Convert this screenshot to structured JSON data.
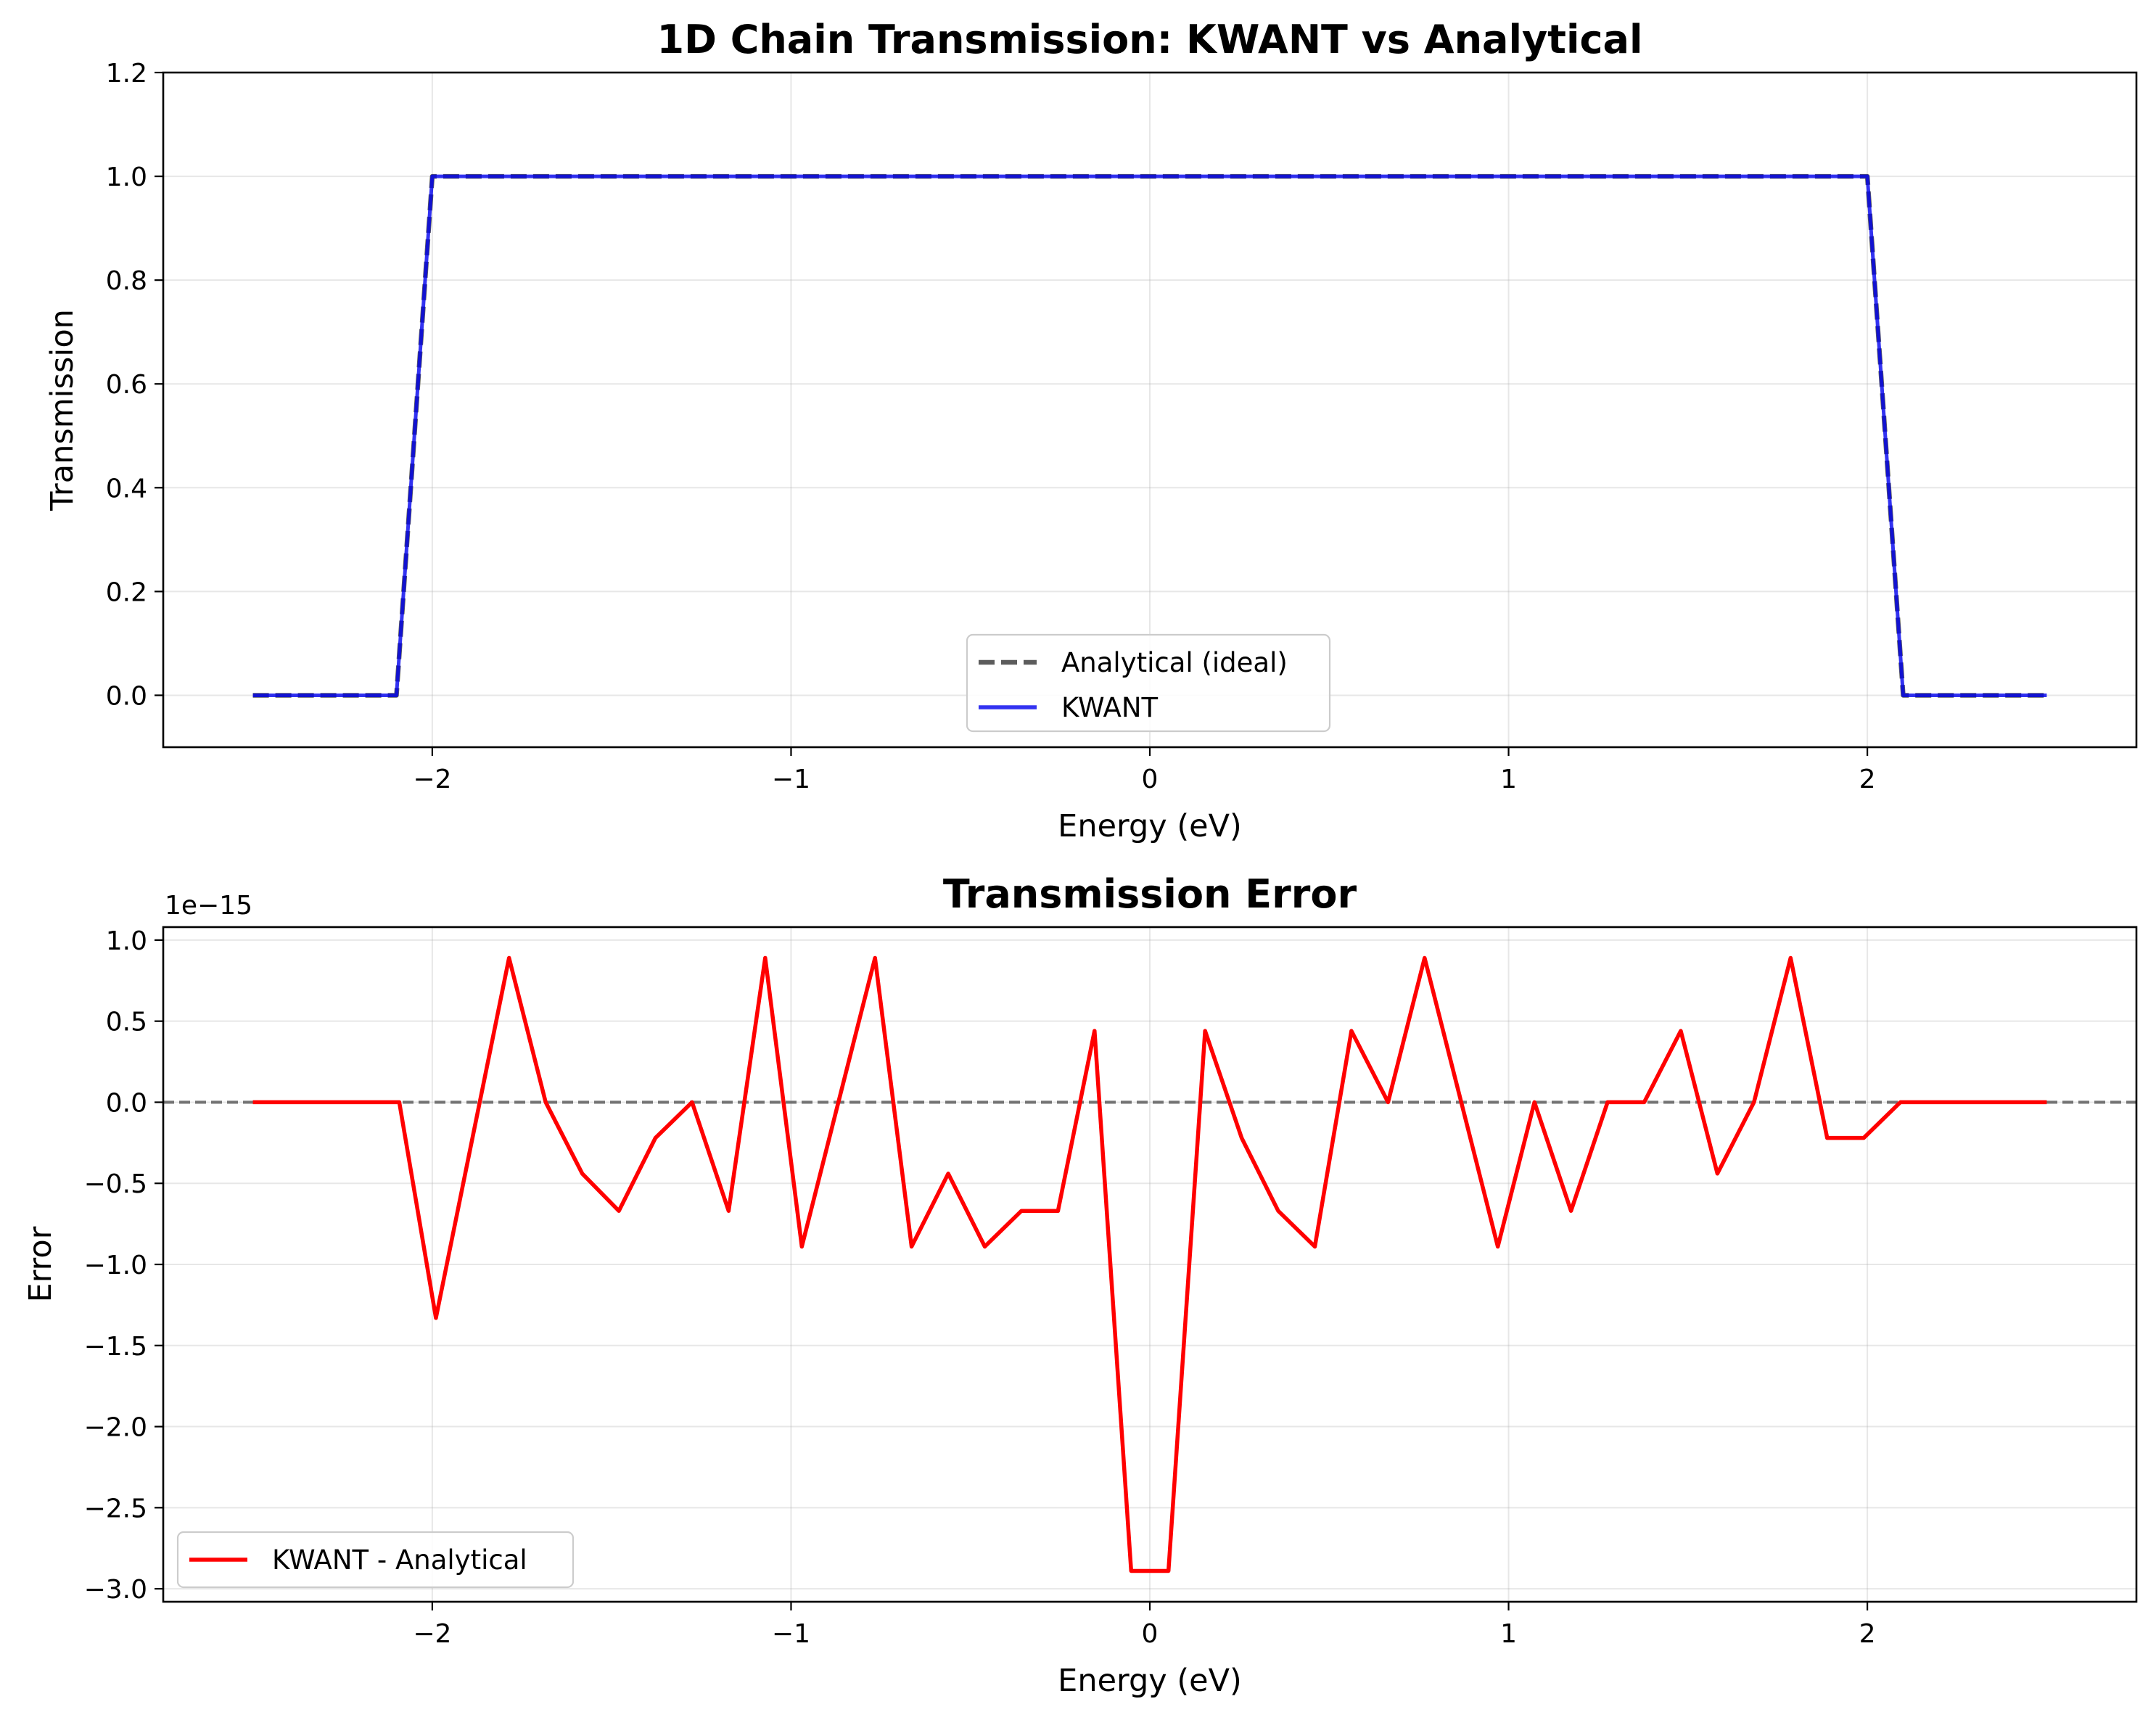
{
  "chart_data": [
    {
      "type": "line",
      "title": "1D Chain Transmission: KWANT vs Analytical",
      "xlabel": "Energy (eV)",
      "ylabel": "Transmission",
      "xlim": [
        -2.75,
        2.75
      ],
      "ylim": [
        -0.1,
        1.2
      ],
      "xticks": [
        -2,
        -1,
        0,
        1,
        2
      ],
      "xtick_labels": [
        "−2",
        "−1",
        "0",
        "1",
        "2"
      ],
      "yticks": [
        0.0,
        0.2,
        0.4,
        0.6,
        0.8,
        1.0,
        1.2
      ],
      "ytick_labels": [
        "0.0",
        "0.2",
        "0.4",
        "0.6",
        "0.8",
        "1.0",
        "1.2"
      ],
      "grid": true,
      "legend": "lower-center",
      "series": [
        {
          "name": "Analytical (ideal)",
          "color": "#404040",
          "style": "dashed",
          "x": [
            -2.5,
            -2.1,
            -2.0,
            2.0,
            2.1,
            2.5
          ],
          "y": [
            0,
            0,
            1,
            1,
            0,
            0
          ]
        },
        {
          "name": "KWANT",
          "color": "#0000ee",
          "style": "solid",
          "x": [
            -2.5,
            -2.1,
            -2.0,
            2.0,
            2.1,
            2.5
          ],
          "y": [
            0,
            0,
            1,
            1,
            0,
            0
          ]
        }
      ]
    },
    {
      "type": "line",
      "title": "Transmission Error",
      "xlabel": "Energy (eV)",
      "ylabel": "Error",
      "offset_text": "1e−15",
      "xlim": [
        -2.75,
        2.75
      ],
      "ylim": [
        -3.08,
        1.08
      ],
      "xticks": [
        -2,
        -1,
        0,
        1,
        2
      ],
      "xtick_labels": [
        "−2",
        "−1",
        "0",
        "1",
        "2"
      ],
      "yticks": [
        1.0,
        0.5,
        0.0,
        -0.5,
        -1.0,
        -1.5,
        -2.0,
        -2.5,
        -3.0
      ],
      "ytick_labels": [
        "1.0",
        "0.5",
        "0.0",
        "−0.5",
        "−1.0",
        "−1.5",
        "−2.0",
        "−2.5",
        "−3.0"
      ],
      "grid": true,
      "legend": "lower-left",
      "reference_line": {
        "y": 0,
        "color": "#666666",
        "style": "dashed"
      },
      "series": [
        {
          "name": "KWANT - Analytical",
          "color": "#ff0000",
          "style": "solid",
          "x": [
            -2.5,
            -2.398,
            -2.296,
            -2.194,
            -2.092,
            -1.99,
            -1.888,
            -1.786,
            -1.684,
            -1.582,
            -1.48,
            -1.378,
            -1.276,
            -1.174,
            -1.072,
            -0.97,
            -0.868,
            -0.766,
            -0.664,
            -0.562,
            -0.46,
            -0.358,
            -0.256,
            -0.154,
            -0.052,
            0.052,
            0.154,
            0.256,
            0.358,
            0.46,
            0.562,
            0.664,
            0.766,
            0.868,
            0.97,
            1.072,
            1.174,
            1.276,
            1.378,
            1.48,
            1.582,
            1.684,
            1.786,
            1.888,
            1.99,
            2.092,
            2.194,
            2.296,
            2.398,
            2.5
          ],
          "y": [
            0,
            0,
            0,
            0,
            0,
            -1.33,
            -0.22,
            0.89,
            0,
            -0.44,
            -0.67,
            -0.22,
            0,
            -0.67,
            0.89,
            -0.89,
            0,
            0.89,
            -0.89,
            -0.44,
            -0.89,
            -0.67,
            -0.67,
            0.44,
            -2.89,
            -2.89,
            0.44,
            -0.22,
            -0.67,
            -0.89,
            0.44,
            0,
            0.89,
            0,
            -0.89,
            0,
            -0.67,
            0,
            0,
            0.44,
            -0.44,
            0,
            0.89,
            -0.22,
            -0.22,
            0,
            0,
            0,
            0,
            0
          ]
        }
      ]
    }
  ]
}
